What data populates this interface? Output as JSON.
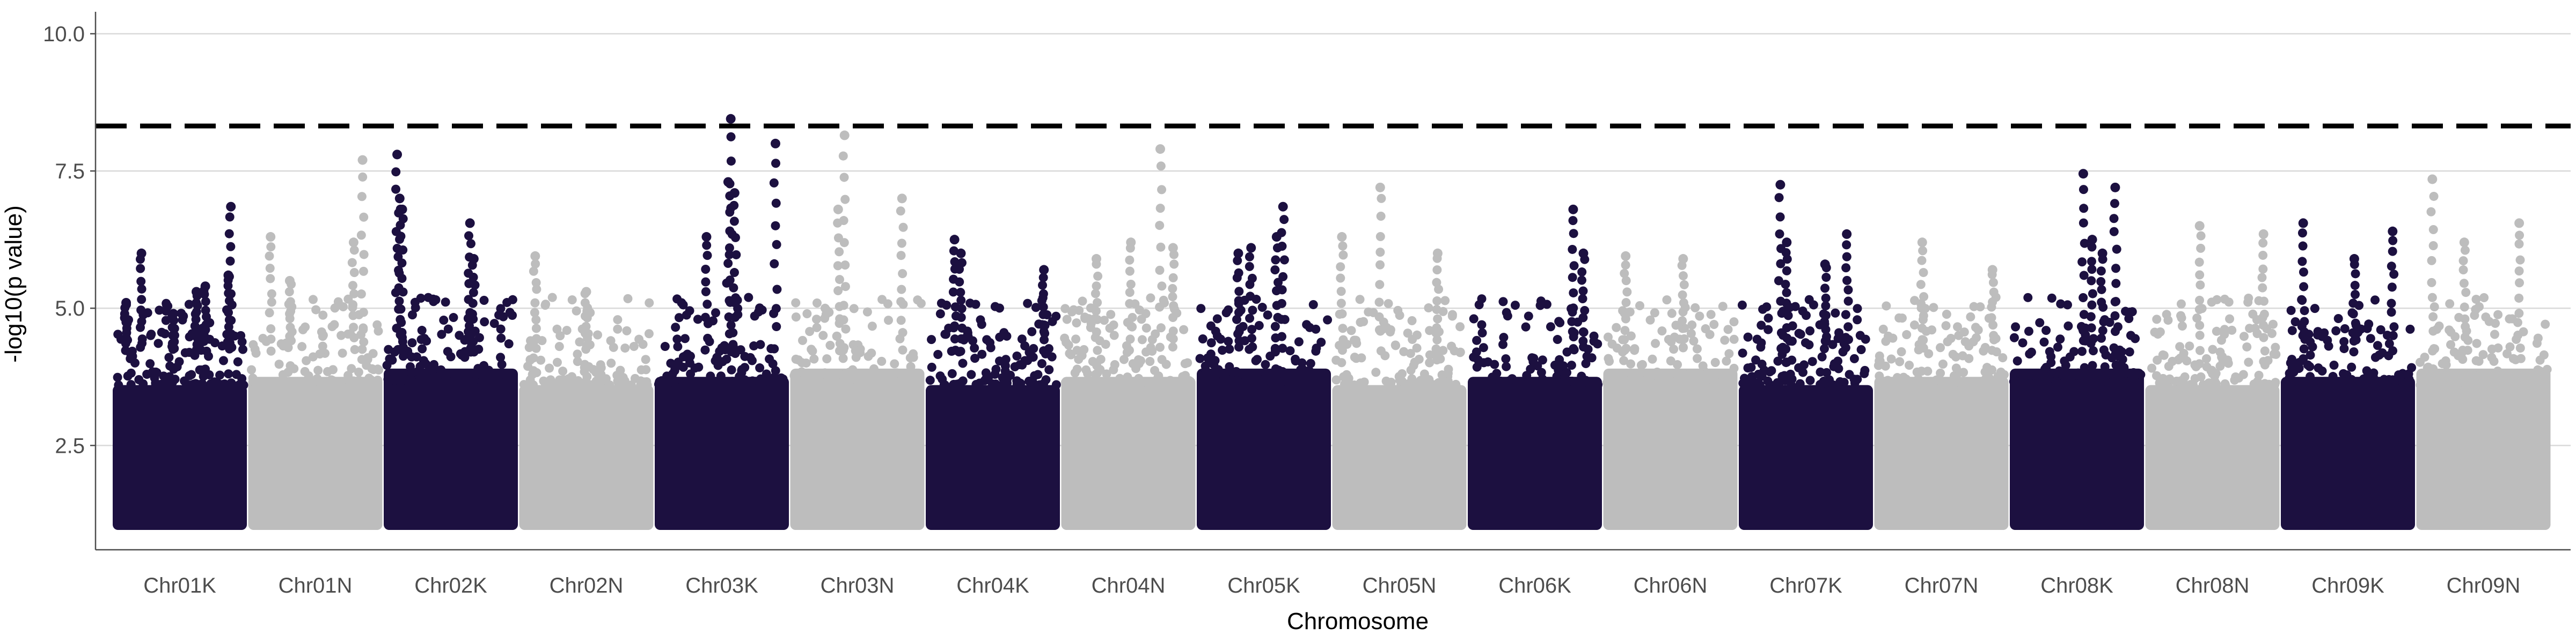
{
  "chart_data": {
    "type": "scatter",
    "subtype": "manhattan",
    "title": "",
    "xlabel": "Chromosome",
    "ylabel": "-log10(p value)",
    "ylim": [
      0.6,
      10.4
    ],
    "yticks": [
      2.5,
      5.0,
      7.5,
      10.0
    ],
    "ytick_labels": [
      "2.5",
      "5.0",
      "7.5",
      "10.0"
    ],
    "grid": "horizontal major lines only",
    "legend": "none",
    "threshold": {
      "value": 8.32,
      "style": "dashed",
      "color": "#000000"
    },
    "colors": [
      "#1c1040",
      "#bdbdbd"
    ],
    "min_plotted_value": 1.0,
    "categories": [
      "Chr01K",
      "Chr01N",
      "Chr02K",
      "Chr02N",
      "Chr03K",
      "Chr03N",
      "Chr04K",
      "Chr04N",
      "Chr05K",
      "Chr05N",
      "Chr06K",
      "Chr06N",
      "Chr07K",
      "Chr07N",
      "Chr08K",
      "Chr08N",
      "Chr09K",
      "Chr09N"
    ],
    "peaks": [
      {
        "chromosome": "Chr01K",
        "max": 6.85,
        "top_points": [
          [
            0.08,
            5.1
          ],
          [
            0.2,
            6.0
          ],
          [
            0.45,
            4.9
          ],
          [
            0.63,
            5.3
          ],
          [
            0.7,
            5.4
          ],
          [
            0.88,
            5.6
          ],
          [
            0.9,
            6.85
          ]
        ]
      },
      {
        "chromosome": "Chr01N",
        "max": 7.7,
        "top_points": [
          [
            0.15,
            6.3
          ],
          [
            0.3,
            5.5
          ],
          [
            0.8,
            6.2
          ],
          [
            0.87,
            7.7
          ]
        ]
      },
      {
        "chromosome": "Chr02K",
        "max": 7.8,
        "top_points": [
          [
            0.08,
            7.8
          ],
          [
            0.1,
            7.0
          ],
          [
            0.12,
            6.8
          ],
          [
            0.65,
            6.55
          ],
          [
            0.68,
            5.9
          ]
        ]
      },
      {
        "chromosome": "Chr02N",
        "max": 5.95,
        "top_points": [
          [
            0.1,
            5.95
          ],
          [
            0.5,
            5.3
          ]
        ]
      },
      {
        "chromosome": "Chr03K",
        "max": 8.45,
        "top_points": [
          [
            0.38,
            6.3
          ],
          [
            0.55,
            7.3
          ],
          [
            0.57,
            8.45
          ],
          [
            0.6,
            7.1
          ],
          [
            0.92,
            8.0
          ]
        ]
      },
      {
        "chromosome": "Chr03N",
        "max": 8.15,
        "top_points": [
          [
            0.35,
            6.8
          ],
          [
            0.4,
            8.15
          ],
          [
            0.85,
            7.0
          ]
        ]
      },
      {
        "chromosome": "Chr04K",
        "max": 6.25,
        "top_points": [
          [
            0.2,
            6.25
          ],
          [
            0.25,
            6.0
          ],
          [
            0.9,
            5.7
          ]
        ]
      },
      {
        "chromosome": "Chr04N",
        "max": 7.9,
        "top_points": [
          [
            0.25,
            5.9
          ],
          [
            0.52,
            6.2
          ],
          [
            0.75,
            7.9
          ],
          [
            0.85,
            6.1
          ]
        ]
      },
      {
        "chromosome": "Chr05K",
        "max": 6.85,
        "top_points": [
          [
            0.3,
            6.0
          ],
          [
            0.4,
            6.1
          ],
          [
            0.6,
            6.3
          ],
          [
            0.65,
            6.85
          ]
        ]
      },
      {
        "chromosome": "Chr05N",
        "max": 7.2,
        "top_points": [
          [
            0.05,
            6.3
          ],
          [
            0.35,
            7.2
          ],
          [
            0.8,
            6.0
          ]
        ]
      },
      {
        "chromosome": "Chr06K",
        "max": 6.8,
        "top_points": [
          [
            0.8,
            6.8
          ],
          [
            0.88,
            6.0
          ]
        ]
      },
      {
        "chromosome": "Chr06N",
        "max": 5.95,
        "top_points": [
          [
            0.15,
            5.95
          ],
          [
            0.6,
            5.9
          ]
        ]
      },
      {
        "chromosome": "Chr07K",
        "max": 7.25,
        "top_points": [
          [
            0.3,
            7.25
          ],
          [
            0.35,
            6.2
          ],
          [
            0.65,
            5.8
          ],
          [
            0.82,
            6.35
          ]
        ]
      },
      {
        "chromosome": "Chr07N",
        "max": 6.2,
        "top_points": [
          [
            0.35,
            6.2
          ],
          [
            0.9,
            5.7
          ]
        ]
      },
      {
        "chromosome": "Chr08K",
        "max": 7.45,
        "top_points": [
          [
            0.55,
            7.45
          ],
          [
            0.62,
            6.25
          ],
          [
            0.8,
            7.2
          ],
          [
            0.7,
            6.0
          ]
        ]
      },
      {
        "chromosome": "Chr08N",
        "max": 6.5,
        "top_points": [
          [
            0.4,
            6.5
          ],
          [
            0.9,
            6.35
          ]
        ]
      },
      {
        "chromosome": "Chr09K",
        "max": 6.55,
        "top_points": [
          [
            0.15,
            6.55
          ],
          [
            0.55,
            5.9
          ],
          [
            0.85,
            6.4
          ]
        ]
      },
      {
        "chromosome": "Chr09N",
        "max": 7.35,
        "top_points": [
          [
            0.1,
            7.35
          ],
          [
            0.35,
            6.2
          ],
          [
            0.78,
            6.55
          ]
        ]
      }
    ]
  }
}
